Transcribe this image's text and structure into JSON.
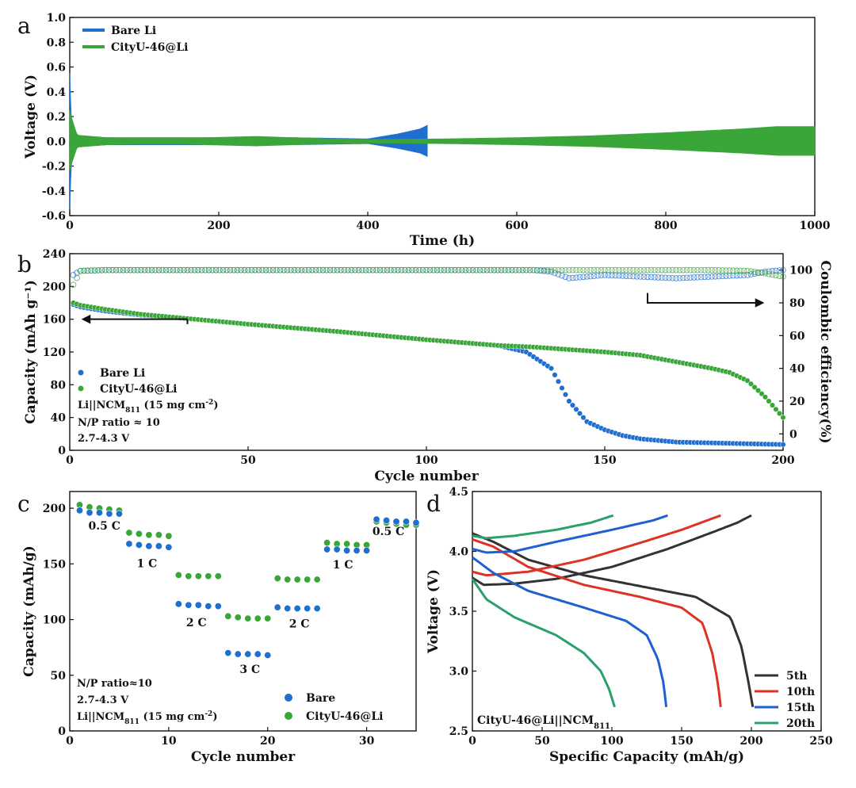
{
  "figure": {
    "panel_labels": [
      "a",
      "b",
      "c",
      "d"
    ],
    "colors": {
      "bare": "#1f6fd0",
      "cityu": "#3aa63a",
      "axis": "#111111"
    }
  },
  "chart_data": [
    {
      "panel": "a",
      "type": "line",
      "title": "",
      "xlabel": "Time (h)",
      "ylabel": "Voltage (V)",
      "xlim": [
        0,
        1000
      ],
      "ylim": [
        -0.6,
        1.0
      ],
      "xticks": [
        "0",
        "200",
        "400",
        "600",
        "800",
        "1000"
      ],
      "yticks": [
        "-0.6",
        "-0.4",
        "-0.2",
        "0.0",
        "0.2",
        "0.4",
        "0.6",
        "0.8",
        "1.0"
      ],
      "legend_position": "top-left",
      "series": [
        {
          "name": "Bare Li",
          "color": "#1f6fd0",
          "x": [
            0,
            2,
            10,
            50,
            100,
            200,
            300,
            350,
            400,
            440,
            470,
            480
          ],
          "amplitude": [
            0.55,
            0.2,
            0.04,
            0.03,
            0.03,
            0.03,
            0.03,
            0.025,
            0.02,
            0.06,
            0.1,
            0.13
          ]
        },
        {
          "name": "CityU-46@Li",
          "color": "#3aa63a",
          "x": [
            0,
            2,
            10,
            50,
            100,
            150,
            250,
            350,
            400,
            500,
            600,
            700,
            800,
            900,
            950,
            1000
          ],
          "amplitude": [
            0.25,
            0.2,
            0.05,
            0.03,
            0.025,
            0.025,
            0.04,
            0.02,
            0.015,
            0.02,
            0.03,
            0.045,
            0.07,
            0.1,
            0.12,
            0.12
          ]
        }
      ]
    },
    {
      "panel": "b",
      "type": "scatter",
      "title": "",
      "xlabel": "Cycle number",
      "ylabel": "Capacity (mAh g⁻¹)",
      "y2label": "Coulombic efficiency(%)",
      "xlim": [
        0,
        200
      ],
      "ylim": [
        0,
        240
      ],
      "y2lim": [
        -10,
        110
      ],
      "xticks": [
        "0",
        "50",
        "100",
        "150",
        "200"
      ],
      "yticks": [
        "0",
        "40",
        "80",
        "120",
        "160",
        "200",
        "240"
      ],
      "y2ticks": [
        "0",
        "20",
        "40",
        "60",
        "80",
        "100"
      ],
      "legend_position": "bottom-left",
      "annotations": {
        "line1_main": "Li||NCM",
        "line1_sub": "811",
        "line1_tail": " (15 mg cm",
        "line1_sup": "-2",
        "line1_end": ")",
        "line2": "N/P ratio ≈ 10",
        "line3": "2.7-4.3 V"
      },
      "series": [
        {
          "name": "Bare Li",
          "color": "#1f6fd0",
          "axis": "left",
          "x": [
            1,
            3,
            10,
            20,
            35,
            50,
            75,
            100,
            120,
            128,
            135,
            140,
            145,
            150,
            155,
            160,
            170,
            180,
            190,
            200
          ],
          "y": [
            178,
            175,
            170,
            165,
            160,
            154,
            145,
            135,
            128,
            120,
            100,
            60,
            35,
            25,
            18,
            14,
            10,
            9,
            8,
            7
          ]
        },
        {
          "name": "CityU-46@Li",
          "color": "#3aa63a",
          "axis": "left",
          "x": [
            1,
            3,
            10,
            20,
            35,
            50,
            75,
            100,
            120,
            130,
            150,
            160,
            170,
            180,
            185,
            190,
            195,
            200
          ],
          "y": [
            180,
            177,
            172,
            166,
            160,
            154,
            145,
            135,
            128,
            126,
            120,
            116,
            108,
            100,
            95,
            85,
            65,
            40
          ]
        },
        {
          "name": "Bare Li CE",
          "color": "#1f6fd0",
          "axis": "right",
          "x": [
            1,
            3,
            10,
            50,
            100,
            130,
            135,
            140,
            145,
            150,
            160,
            170,
            180,
            190,
            195,
            200
          ],
          "y": [
            97,
            99.5,
            100,
            100,
            100,
            100,
            99,
            95,
            96,
            97,
            96,
            95,
            96,
            97,
            99,
            100
          ]
        },
        {
          "name": "CityU-46@Li CE",
          "color": "#3aa63a",
          "axis": "right",
          "x": [
            1,
            3,
            10,
            50,
            100,
            150,
            180,
            190,
            195,
            200
          ],
          "y": [
            91,
            99.5,
            100,
            100,
            100,
            100,
            100,
            99.5,
            98,
            96
          ]
        }
      ]
    },
    {
      "panel": "c",
      "type": "scatter",
      "title": "",
      "xlabel": "Cycle number",
      "ylabel": "Capacity (mAh/g)",
      "xlim": [
        0,
        35
      ],
      "ylim": [
        0,
        215
      ],
      "xticks": [
        "0",
        "10",
        "20",
        "30"
      ],
      "yticks": [
        "0",
        "50",
        "100",
        "150",
        "200"
      ],
      "legend_position": "bottom-right",
      "rate_labels": [
        {
          "text": "0.5 C",
          "x": 3.5,
          "y": 181
        },
        {
          "text": "1 C",
          "x": 7.8,
          "y": 147
        },
        {
          "text": "2 C",
          "x": 12.8,
          "y": 94
        },
        {
          "text": "3 C",
          "x": 18.2,
          "y": 52
        },
        {
          "text": "2 C",
          "x": 23.2,
          "y": 93
        },
        {
          "text": "1 C",
          "x": 27.6,
          "y": 146
        },
        {
          "text": "0.5 C",
          "x": 32.2,
          "y": 176
        }
      ],
      "annotations": {
        "line1": "N/P ratio≈10",
        "line2": "2.7-4.3 V",
        "line3_main": "Li||NCM",
        "line3_sub": "811",
        "line3_tail": " (15 mg cm",
        "line3_sup": "-2",
        "line3_end": ")"
      },
      "series": [
        {
          "name": "Bare",
          "color": "#1f6fd0",
          "x": [
            1,
            2,
            3,
            4,
            5,
            6,
            7,
            8,
            9,
            10,
            11,
            12,
            13,
            14,
            15,
            16,
            17,
            18,
            19,
            20,
            21,
            22,
            23,
            24,
            25,
            26,
            27,
            28,
            29,
            30,
            31,
            32,
            33,
            34,
            35
          ],
          "y": [
            198,
            196,
            196,
            195,
            195,
            168,
            167,
            166,
            166,
            165,
            114,
            113,
            113,
            112,
            112,
            70,
            69,
            69,
            69,
            68,
            111,
            110,
            110,
            110,
            110,
            163,
            163,
            162,
            162,
            162,
            190,
            189,
            188,
            188,
            187
          ]
        },
        {
          "name": "CityU-46@Li",
          "color": "#3aa63a",
          "x": [
            1,
            2,
            3,
            4,
            5,
            6,
            7,
            8,
            9,
            10,
            11,
            12,
            13,
            14,
            15,
            16,
            17,
            18,
            19,
            20,
            21,
            22,
            23,
            24,
            25,
            26,
            27,
            28,
            29,
            30,
            31,
            32,
            33,
            34,
            35
          ],
          "y": [
            203,
            201,
            200,
            199,
            198,
            178,
            177,
            176,
            176,
            175,
            140,
            139,
            139,
            139,
            139,
            103,
            102,
            101,
            101,
            101,
            137,
            136,
            136,
            136,
            136,
            169,
            168,
            168,
            167,
            167,
            188,
            187,
            186,
            185,
            185
          ]
        }
      ]
    },
    {
      "panel": "d",
      "type": "line",
      "title": "",
      "xlabel": "Specific Capacity (mAh/g)",
      "ylabel": "Voltage (V)",
      "xlim": [
        0,
        250
      ],
      "ylim": [
        2.5,
        4.5
      ],
      "xticks": [
        "0",
        "50",
        "100",
        "150",
        "200",
        "250"
      ],
      "yticks": [
        "2.5",
        "3.0",
        "3.5",
        "4.0",
        "4.5"
      ],
      "legend_position": "bottom-right",
      "annotations": {
        "main": "CityU-46@Li||NCM",
        "sub": "811"
      },
      "series": [
        {
          "name": "5th",
          "color": "#333333",
          "charge": {
            "x": [
              0,
              8,
              30,
              60,
              100,
              140,
              170,
              190,
              200
            ],
            "y": [
              3.78,
              3.72,
              3.73,
              3.77,
              3.87,
              4.02,
              4.15,
              4.24,
              4.3
            ]
          },
          "discharge": {
            "x": [
              0,
              15,
              40,
              80,
              120,
              160,
              185,
              193,
              198,
              201
            ],
            "y": [
              4.15,
              4.08,
              3.93,
              3.8,
              3.71,
              3.62,
              3.45,
              3.2,
              2.9,
              2.7
            ]
          }
        },
        {
          "name": "10th",
          "color": "#dd3322",
          "charge": {
            "x": [
              0,
              10,
              40,
              80,
              120,
              150,
              178
            ],
            "y": [
              3.83,
              3.8,
              3.83,
              3.93,
              4.07,
              4.18,
              4.3
            ]
          },
          "discharge": {
            "x": [
              0,
              15,
              40,
              80,
              120,
              150,
              165,
              172,
              176,
              178
            ],
            "y": [
              4.1,
              4.04,
              3.87,
              3.72,
              3.62,
              3.53,
              3.4,
              3.15,
              2.9,
              2.7
            ]
          }
        },
        {
          "name": "15th",
          "color": "#1f5fd0",
          "charge": {
            "x": [
              0,
              10,
              30,
              60,
              100,
              130,
              140
            ],
            "y": [
              4.02,
              3.99,
              4.0,
              4.08,
              4.18,
              4.26,
              4.3
            ]
          },
          "discharge": {
            "x": [
              0,
              15,
              40,
              80,
              110,
              125,
              133,
              137,
              139
            ],
            "y": [
              3.95,
              3.82,
              3.67,
              3.53,
              3.42,
              3.3,
              3.1,
              2.9,
              2.7
            ]
          }
        },
        {
          "name": "20th",
          "color": "#2aa06a",
          "charge": {
            "x": [
              0,
              10,
              30,
              60,
              85,
              101
            ],
            "y": [
              4.13,
              4.11,
              4.13,
              4.18,
              4.24,
              4.3
            ]
          },
          "discharge": {
            "x": [
              0,
              10,
              30,
              60,
              80,
              92,
              98,
              102
            ],
            "y": [
              3.77,
              3.6,
              3.45,
              3.3,
              3.15,
              3.0,
              2.85,
              2.7
            ]
          }
        }
      ]
    }
  ]
}
